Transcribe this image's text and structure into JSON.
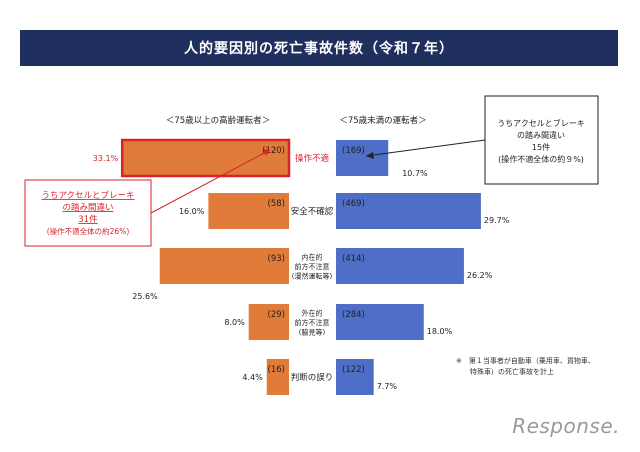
{
  "title": "人的要因別の死亡事故件数（令和７年）",
  "chart_data": {
    "type": "bar",
    "categories": [
      "操作不適",
      "安全不確認",
      "内在的\n前方不注意\n(漫然運転等)",
      "外在的\n前方不注意\n(脇見等)",
      "判断の誤り"
    ],
    "series": [
      {
        "name": "＜75歳以上の高齢運転者＞",
        "values": [
          120,
          58,
          93,
          29,
          16
        ],
        "value_labels": [
          "(120)",
          "(58)",
          "(93)",
          "(29)",
          "(16)"
        ],
        "percent_labels": [
          "33.1%",
          "16.0%",
          "25.6%",
          "8.0%",
          "4.4%"
        ],
        "color": "#e07b39"
      },
      {
        "name": "＜75歳未満の運転者＞",
        "values": [
          169,
          469,
          414,
          284,
          122
        ],
        "value_labels": [
          "(169)",
          "(469)",
          "(414)",
          "(284)",
          "(122)"
        ],
        "percent_labels": [
          "10.7%",
          "29.7%",
          "26.2%",
          "18.0%",
          "7.7%"
        ],
        "color": "#4f6ec8"
      }
    ],
    "highlight_category": "操作不適",
    "highlight_color": "#d9232b",
    "annotations": {
      "left_box": [
        "うちアクセルとブレーキ",
        "の踏み間違い",
        "31件",
        "(操作不適全体の約26%)"
      ],
      "right_box": [
        "うちアクセルとブレーキ",
        "の踏み間違い",
        "15件",
        "(操作不適全体の約９%)"
      ],
      "note": [
        "※　第１当事者が自動車（乗用車、貨物車、",
        "特殊車）の死亡事故を計上"
      ]
    }
  },
  "logo_text": "Response."
}
